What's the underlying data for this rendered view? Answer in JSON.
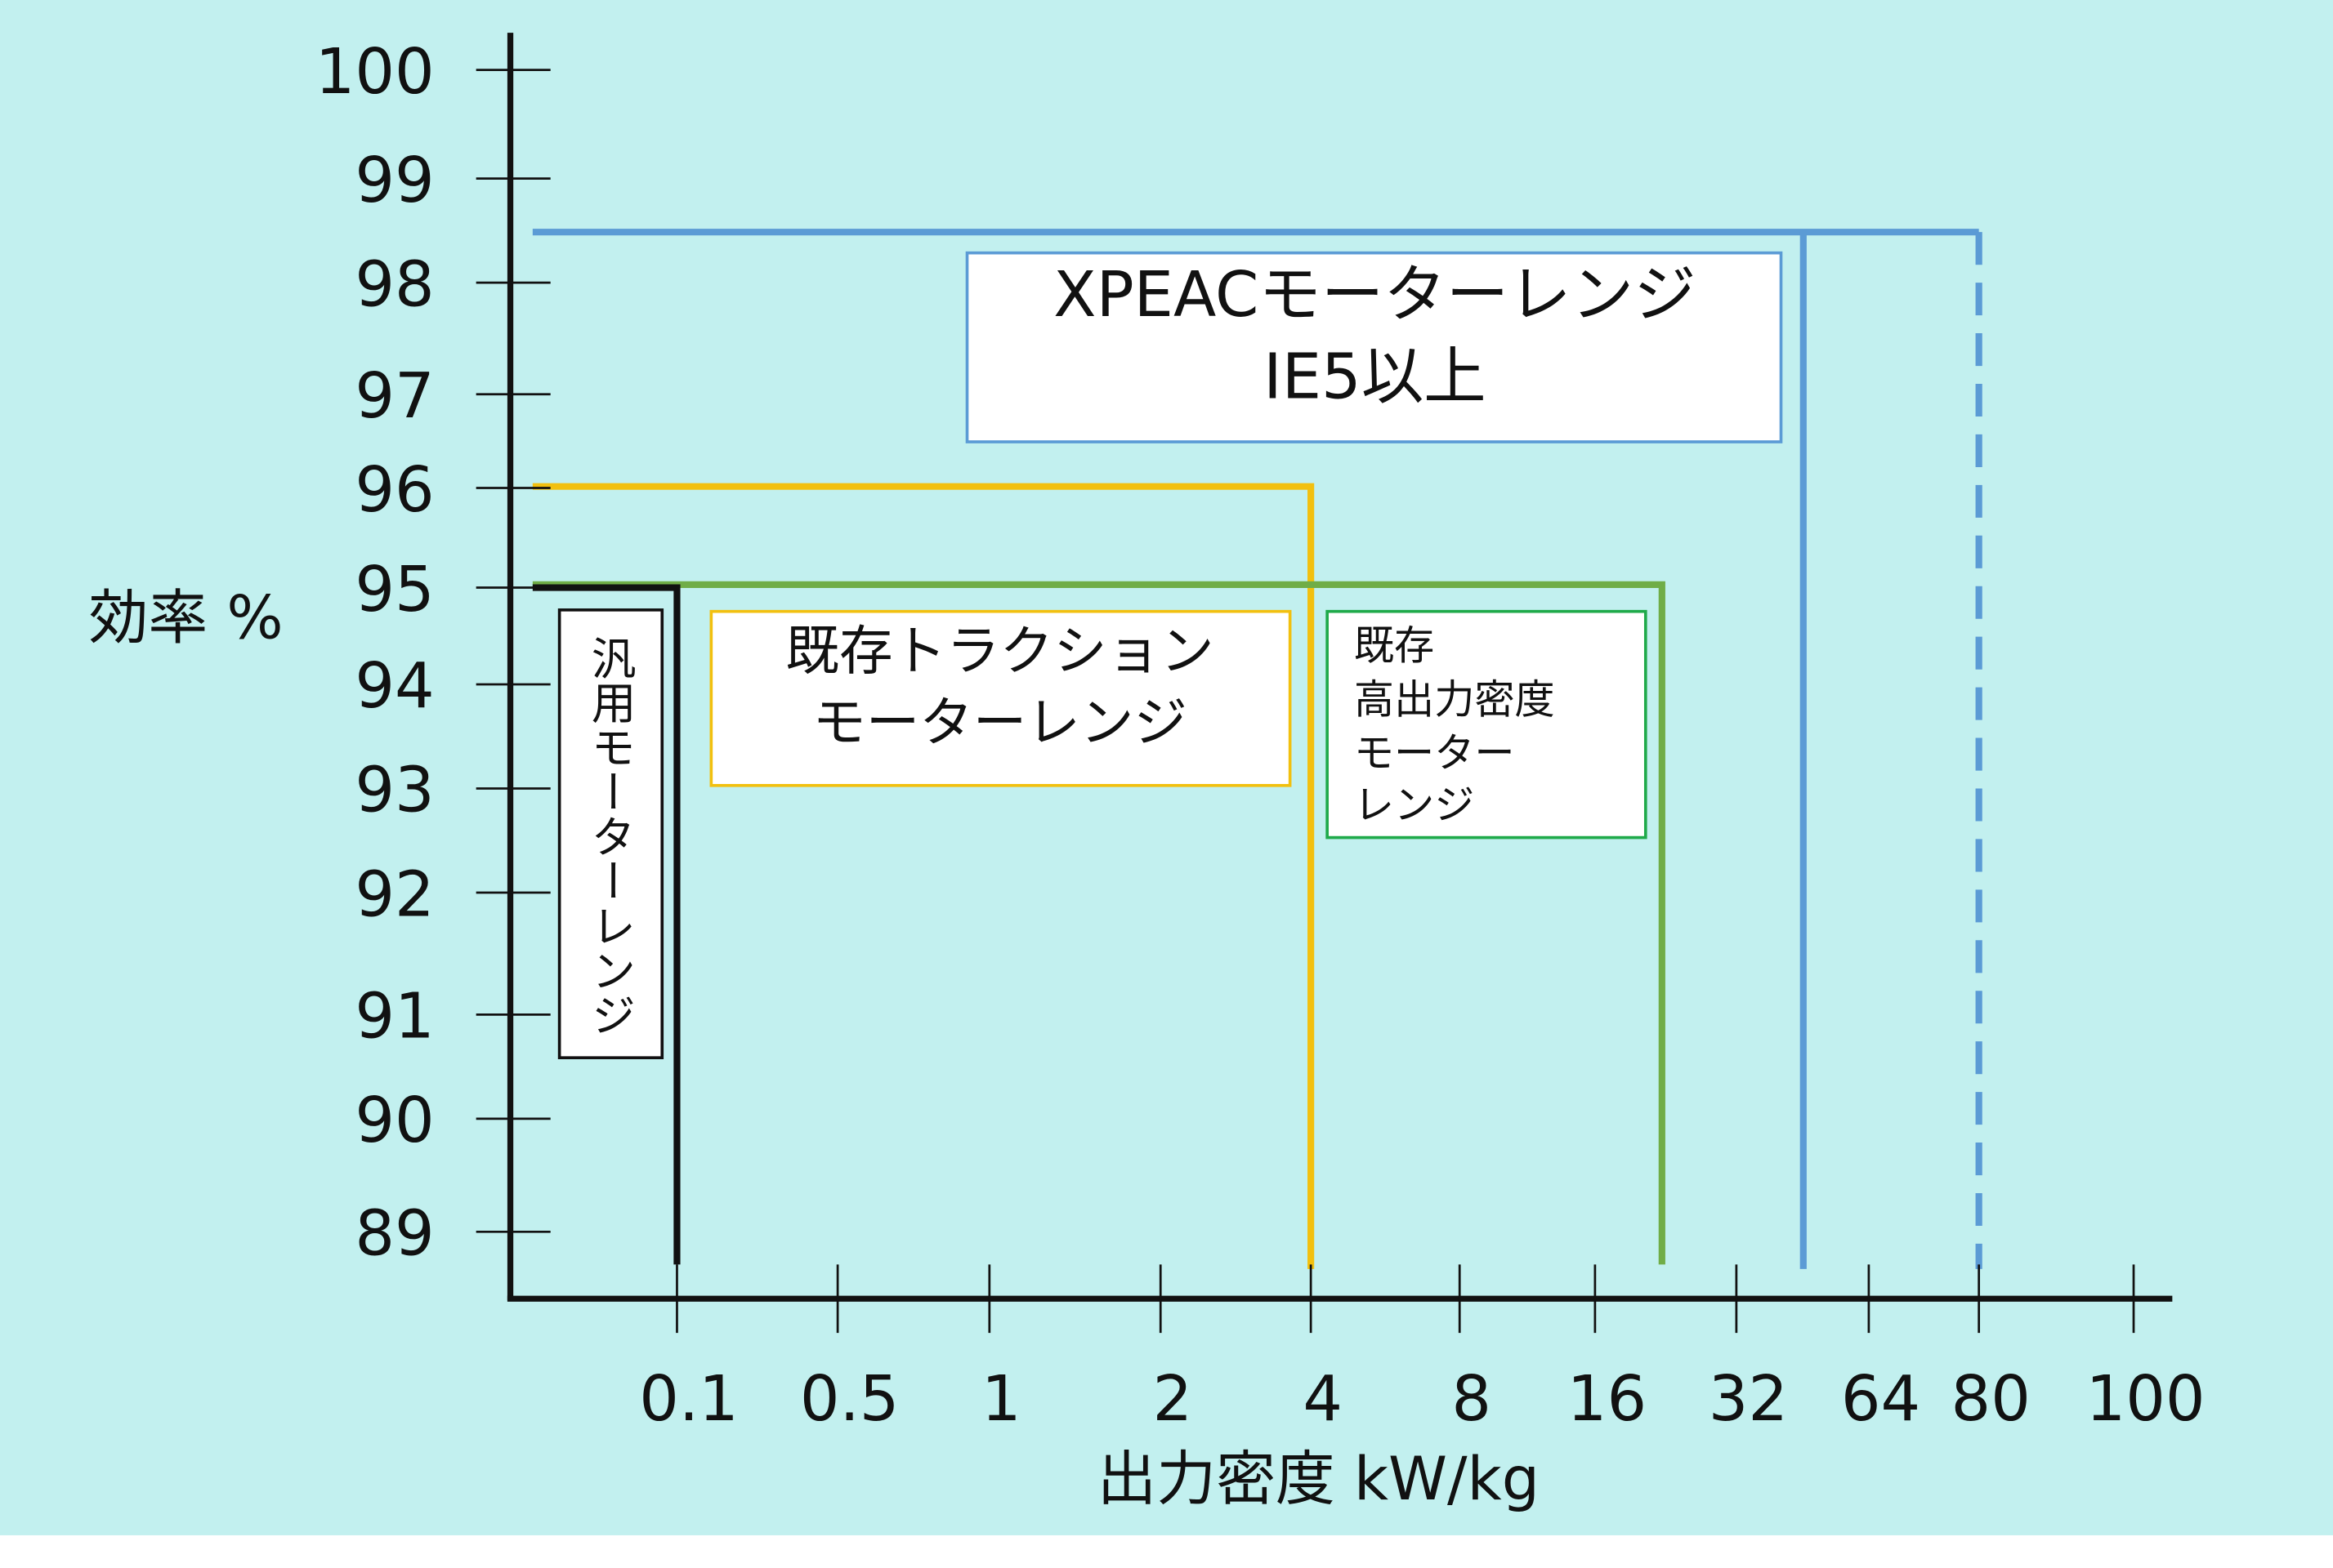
{
  "y_axis": {
    "label": "効率 %",
    "ticks": [
      "100",
      "99",
      "98",
      "97",
      "96",
      "95",
      "94",
      "93",
      "92",
      "91",
      "90",
      "89"
    ]
  },
  "x_axis": {
    "label": "出力密度 kW/kg",
    "ticks": [
      "0.1",
      "0.5",
      "1",
      "2",
      "4",
      "8",
      "16",
      "32",
      "64",
      "80",
      "100"
    ]
  },
  "boxes": {
    "xpeac": {
      "lines": [
        "XPEACモーターレンジ",
        "IE5以上"
      ]
    },
    "traction": {
      "lines": [
        "既存トラクション",
        "モーターレンジ"
      ]
    },
    "high_density": {
      "lines": [
        "既存",
        "高出力密度",
        "モーター",
        "レンジ"
      ]
    },
    "general": {
      "lines": [
        "汎用モーターレンジ"
      ]
    }
  }
}
